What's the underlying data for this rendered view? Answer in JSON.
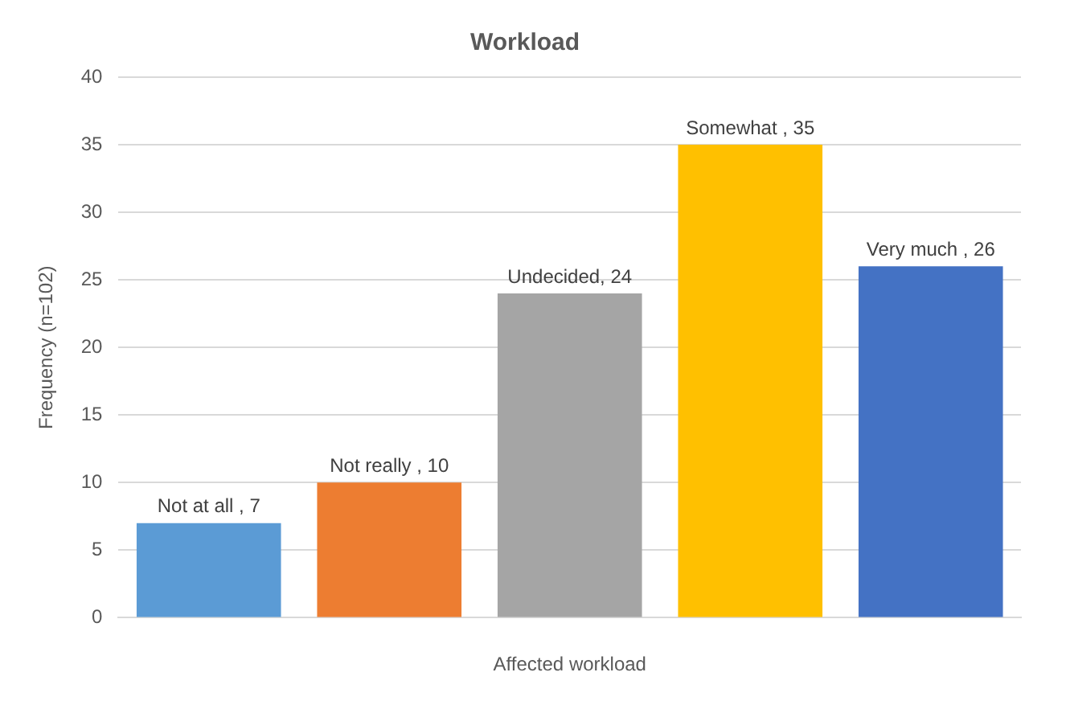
{
  "chart_data": {
    "type": "bar",
    "title": "Workload",
    "xlabel": "Affected workload",
    "ylabel": "Frequency (n=102)",
    "categories": [
      null,
      null,
      null,
      null,
      null
    ],
    "values": [
      7,
      10,
      24,
      35,
      26
    ],
    "colors": [
      "#5b9bd5",
      "#ed7d31",
      "#a5a5a5",
      "#ffc000",
      "#4472c4"
    ],
    "value_labels": [
      "Not at all , 7",
      "Not really , 10",
      "Undecided, 24",
      "Somewhat , 35",
      "Very much , 26"
    ],
    "ylim": [
      0,
      40
    ],
    "yticks": [
      0,
      5,
      10,
      15,
      20,
      25,
      30,
      35,
      40
    ],
    "grid": "y",
    "legend": false
  }
}
